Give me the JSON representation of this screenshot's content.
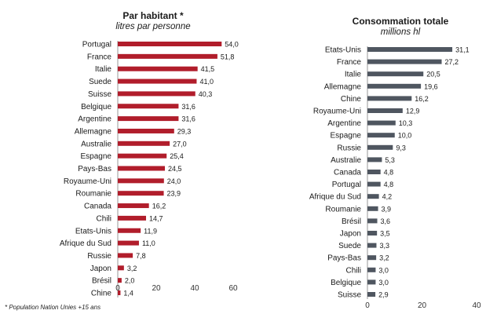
{
  "footnote": "* Population Nation Unies +15 ans",
  "chart_data": [
    {
      "type": "bar",
      "orientation": "horizontal",
      "title": "Par habitant",
      "title_marker": "*",
      "subtitle": "litres par personne",
      "xlim": [
        0,
        60
      ],
      "xticks": [
        "0",
        "20",
        "40",
        "60"
      ],
      "color": "#b11d2b",
      "categories": [
        "Portugal",
        "France",
        "Italie",
        "Suede",
        "Suisse",
        "Belgique",
        "Argentine",
        "Allemagne",
        "Australie",
        "Espagne",
        "Pays-Bas",
        "Royaume-Uni",
        "Roumanie",
        "Canada",
        "Chili",
        "Etats-Unis",
        "Afrique du Sud",
        "Russie",
        "Japon",
        "Brésil",
        "Chine"
      ],
      "values": [
        54.0,
        51.8,
        41.5,
        41.0,
        40.3,
        31.6,
        31.6,
        29.3,
        27.0,
        25.4,
        24.5,
        24.0,
        23.9,
        16.2,
        14.7,
        11.9,
        11.0,
        7.8,
        3.2,
        2.0,
        1.4
      ],
      "value_labels": [
        "54,0",
        "51,8",
        "41,5",
        "41,0",
        "40,3",
        "31,6",
        "31,6",
        "29,3",
        "27,0",
        "25,4",
        "24,5",
        "24,0",
        "23,9",
        "16,2",
        "14,7",
        "11,9",
        "11,0",
        "7,8",
        "3,2",
        "2,0",
        "1,4"
      ]
    },
    {
      "type": "bar",
      "orientation": "horizontal",
      "title": "Consommation totale",
      "subtitle": "millions hl",
      "xlim": [
        0,
        40
      ],
      "xticks": [
        "0",
        "20",
        "40"
      ],
      "color": "#4f5660",
      "categories": [
        "Etats-Unis",
        "France",
        "Italie",
        "Allemagne",
        "Chine",
        "Royaume-Uni",
        "Argentine",
        "Espagne",
        "Russie",
        "Australie",
        "Canada",
        "Portugal",
        "Afrique du Sud",
        "Roumanie",
        "Brésil",
        "Japon",
        "Suede",
        "Pays-Bas",
        "Chili",
        "Belgique",
        "Suisse"
      ],
      "values": [
        31.1,
        27.2,
        20.5,
        19.6,
        16.2,
        12.9,
        10.3,
        10.0,
        9.3,
        5.3,
        4.8,
        4.8,
        4.2,
        3.9,
        3.6,
        3.5,
        3.3,
        3.2,
        3.0,
        3.0,
        2.9
      ],
      "value_labels": [
        "31,1",
        "27,2",
        "20,5",
        "19,6",
        "16,2",
        "12,9",
        "10,3",
        "10,0",
        "9,3",
        "5,3",
        "4,8",
        "4,8",
        "4,2",
        "3,9",
        "3,6",
        "3,5",
        "3,3",
        "3,2",
        "3,0",
        "3,0",
        "2,9"
      ]
    }
  ]
}
